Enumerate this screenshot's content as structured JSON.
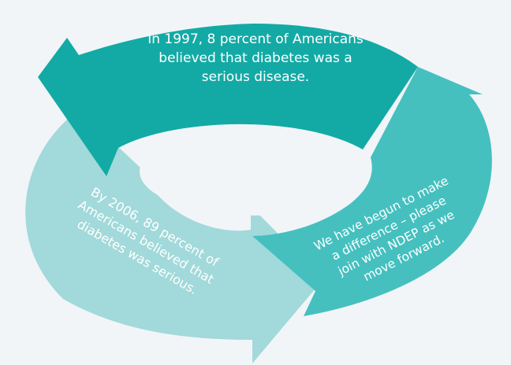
{
  "diagram": {
    "colors": {
      "background": "#f1f5f8",
      "segment_top": "#13aaa5",
      "segment_right": "#45c0bf",
      "segment_left": "#a2d9da",
      "hole": "#f1f5f8",
      "text": "#ffffff"
    },
    "segments": [
      {
        "id": "top",
        "lines": [
          "In 1997, 8 percent of Americans",
          "believed that diabetes was a",
          "serious disease."
        ]
      },
      {
        "id": "left",
        "lines": [
          "By 2006, 89 percent of",
          "Americans believed that",
          "diabetes was serious."
        ]
      },
      {
        "id": "right",
        "lines": [
          "We have begun to make",
          "a difference – please",
          "join with NDEP as we",
          "move forward."
        ]
      }
    ]
  }
}
